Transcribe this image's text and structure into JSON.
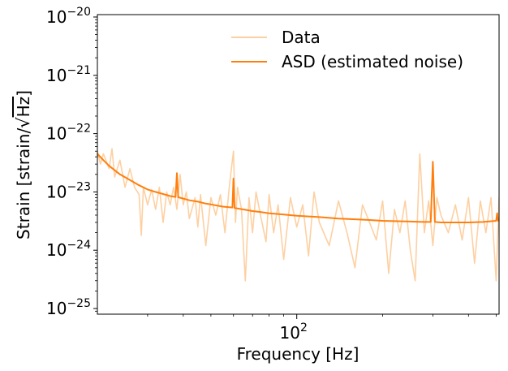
{
  "chart_data": {
    "type": "line",
    "title": "",
    "xlabel": "Frequency [Hz]",
    "ylabel": "Strain [strain/√Hz]",
    "ylabel_parts": {
      "prefix": "Strain [strain/",
      "radical": "Hz",
      "suffix": "]"
    },
    "xscale": "log",
    "yscale": "log",
    "xlim": [
      20,
      512
    ],
    "ylim": [
      8e-26,
      1.1e-20
    ],
    "grid": false,
    "legend_position": "top-right",
    "x_ticks": [
      {
        "value": 100,
        "base": "10",
        "exp": "2"
      }
    ],
    "y_ticks": [
      {
        "value": 1e-25,
        "base": "10",
        "exp": "−25"
      },
      {
        "value": 1e-24,
        "base": "10",
        "exp": "−24"
      },
      {
        "value": 1e-23,
        "base": "10",
        "exp": "−23"
      },
      {
        "value": 1e-22,
        "base": "10",
        "exp": "−22"
      },
      {
        "value": 1e-21,
        "base": "10",
        "exp": "−21"
      },
      {
        "value": 1e-20,
        "base": "10",
        "exp": "−20"
      }
    ],
    "series": [
      {
        "name": "Data",
        "color": "#fdd0a2",
        "x": [
          20,
          20.5,
          21,
          22,
          22.5,
          23,
          24,
          25,
          26,
          27,
          28,
          28.5,
          29,
          30,
          31,
          32,
          33,
          34,
          35,
          36,
          37,
          38,
          39,
          40,
          41,
          42,
          44,
          45,
          46,
          48,
          50,
          52,
          54,
          56,
          58,
          60,
          61,
          62,
          64,
          66,
          68,
          70,
          72,
          75,
          78,
          80,
          83,
          86,
          90,
          95,
          100,
          105,
          110,
          115,
          120,
          130,
          140,
          150,
          160,
          170,
          180,
          190,
          200,
          210,
          220,
          230,
          240,
          250,
          260,
          270,
          280,
          290,
          300,
          310,
          320,
          340,
          360,
          380,
          400,
          420,
          440,
          460,
          480,
          500,
          512
        ],
        "y": [
          5e-23,
          3e-23,
          4.5e-23,
          2.5e-23,
          5.5e-23,
          1.8e-23,
          3.5e-23,
          1.2e-23,
          2.5e-23,
          1.2e-23,
          9e-24,
          1.8e-24,
          1.2e-23,
          6e-24,
          1.1e-23,
          5e-24,
          1.2e-23,
          3e-24,
          1e-23,
          6e-24,
          1.2e-23,
          5e-24,
          2e-23,
          6e-24,
          1e-23,
          3.5e-24,
          8e-24,
          2.5e-24,
          9e-24,
          1.2e-24,
          8e-24,
          4e-24,
          9e-24,
          2e-24,
          1.2e-23,
          5e-23,
          3e-24,
          1.2e-23,
          5e-24,
          3e-25,
          8e-24,
          2e-24,
          1e-23,
          3.5e-24,
          1.4e-24,
          9e-24,
          2e-24,
          6e-24,
          7e-25,
          8e-24,
          2.5e-24,
          6e-24,
          8e-25,
          1e-23,
          3e-24,
          1.2e-24,
          7e-24,
          2e-24,
          5e-25,
          6e-24,
          3e-24,
          1.5e-24,
          7e-24,
          4e-25,
          5e-24,
          2e-24,
          7e-24,
          1e-24,
          3e-25,
          4.5e-23,
          2e-24,
          7e-24,
          1.2e-24,
          8e-24,
          4e-24,
          2e-24,
          6e-24,
          1.5e-24,
          8e-24,
          6e-25,
          7e-24,
          2e-24,
          8e-24,
          3e-25,
          8e-24
        ]
      },
      {
        "name": "ASD (estimated noise)",
        "color": "#ff7f0e",
        "x": [
          20,
          21,
          22,
          24,
          26,
          28,
          30,
          32,
          34,
          36,
          37.6,
          38,
          38.4,
          40,
          42,
          45,
          48,
          50,
          55,
          59.5,
          60,
          60.5,
          65,
          70,
          75,
          80,
          90,
          100,
          110,
          120,
          140,
          160,
          180,
          200,
          220,
          250,
          280,
          295,
          300,
          305,
          320,
          350,
          400,
          450,
          500,
          504,
          508,
          512
        ],
        "y": [
          4.5e-23,
          3.5e-23,
          2.8e-23,
          2e-23,
          1.6e-23,
          1.3e-23,
          1.1e-23,
          1e-23,
          9.2e-24,
          8.5e-24,
          8.2e-24,
          2.1e-23,
          8.1e-24,
          7.7e-24,
          7.2e-24,
          6.8e-24,
          6.3e-24,
          6.1e-24,
          5.6e-24,
          5.4e-24,
          1.7e-23,
          5.3e-24,
          5e-24,
          4.7e-24,
          4.5e-24,
          4.3e-24,
          4.1e-24,
          3.9e-24,
          3.8e-24,
          3.7e-24,
          3.5e-24,
          3.4e-24,
          3.3e-24,
          3.2e-24,
          3.15e-24,
          3.1e-24,
          3.05e-24,
          3.05e-24,
          3.3e-23,
          3.05e-24,
          3e-24,
          3e-24,
          3e-24,
          3.05e-24,
          3.2e-24,
          4.3e-24,
          3.2e-24,
          3.3e-24
        ]
      }
    ]
  }
}
